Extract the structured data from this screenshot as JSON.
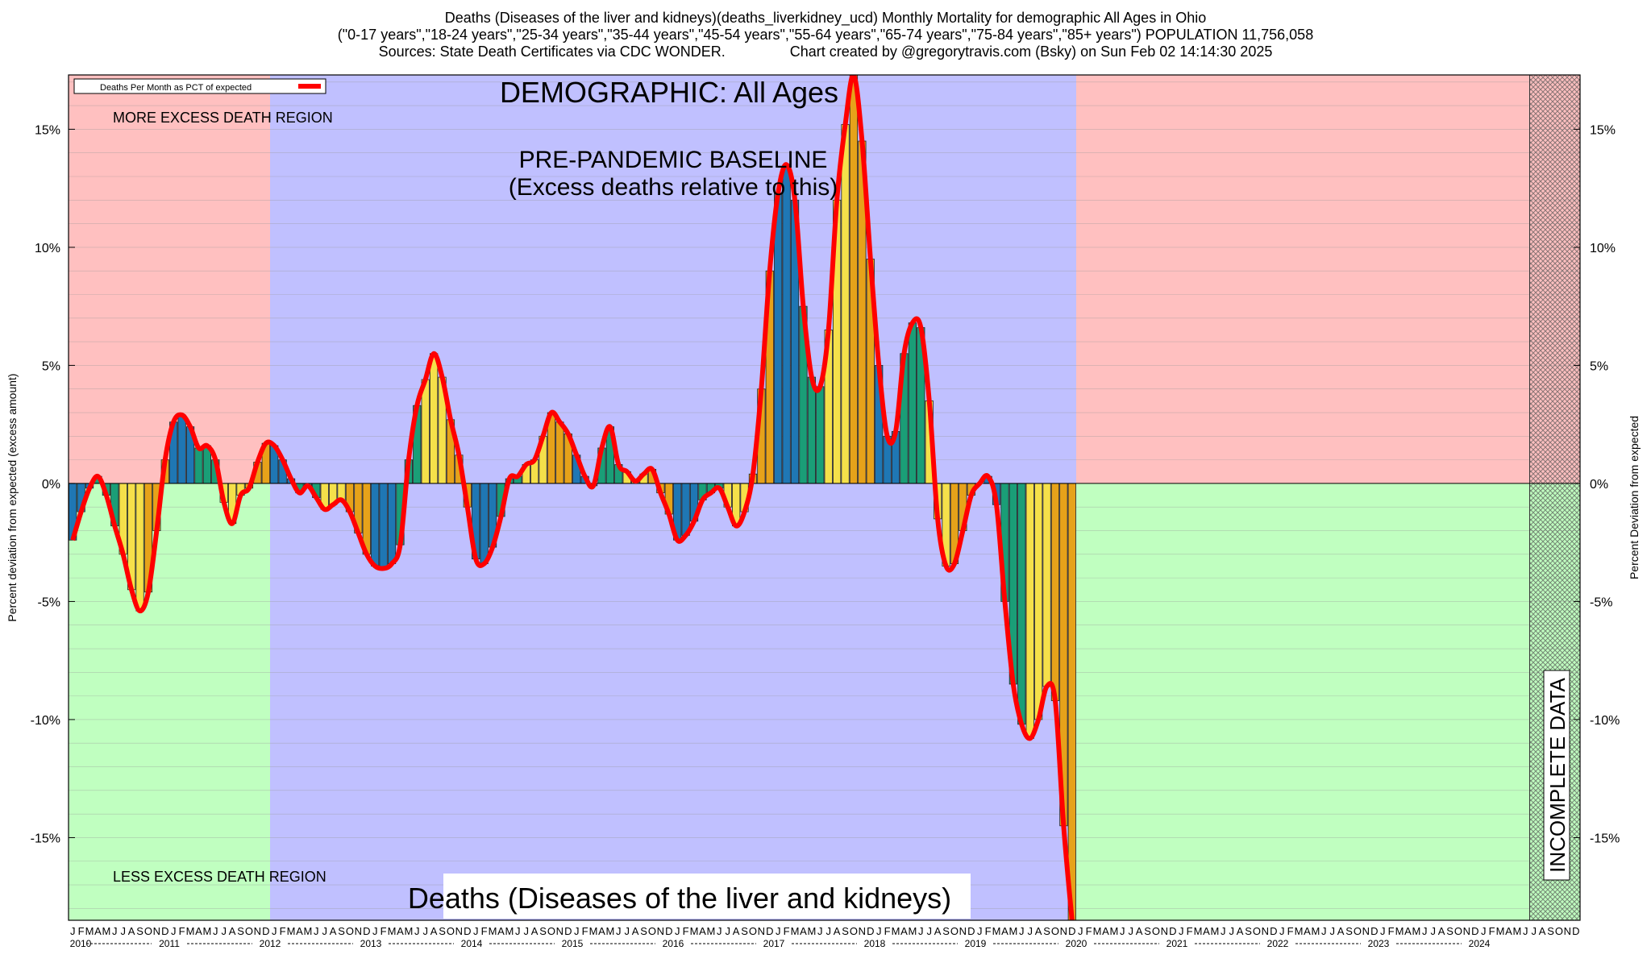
{
  "header": {
    "title_line1": "Deaths (Diseases of the liver and kidneys)(deaths_liverkidney_ucd) Monthly Mortality for demographic All Ages in Ohio",
    "title_line2": "(\"0-17 years\",\"18-24 years\",\"25-34 years\",\"35-44 years\",\"45-54 years\",\"55-64 years\",\"65-74 years\",\"75-84 years\",\"85+ years\") POPULATION 11,756,058",
    "title_line3": "Sources: State Death Certificates via CDC WONDER.                Chart created by @gregorytravis.com (Bsky) on Sun Feb 02 14:14:30 2025"
  },
  "colors": {
    "excess_region": "#ffc0c0",
    "less_region": "#c0ffc0",
    "baseline_region": "#c0c0ff",
    "line": "#ff0000",
    "bar_colors": [
      "#1f77b4",
      "#1a9e77",
      "#f5e04a",
      "#e6a21a"
    ]
  },
  "chart_data": {
    "type": "bar",
    "series_name": "Deaths Per Month as PCT of expected",
    "ylim": [
      -18.5,
      17.3
    ],
    "y_ticks": [
      -15,
      -10,
      -5,
      0,
      5,
      10,
      15
    ],
    "y_tick_labels": [
      "-15%",
      "-10%",
      "-5%",
      "0%",
      "5%",
      "10%",
      "15%"
    ],
    "ylabel_left": "Percent deviation from expected (excess amount)",
    "ylabel_right": "Percent Deviation from expected",
    "month_letters": [
      "J",
      "F",
      "M",
      "A",
      "M",
      "J",
      "J",
      "A",
      "S",
      "O",
      "N",
      "D"
    ],
    "years": [
      "2010",
      "2011",
      "2012",
      "2013",
      "2014",
      "2015",
      "2016",
      "2017",
      "2018",
      "2019",
      "2020",
      "2021",
      "2022",
      "2023",
      "2024"
    ],
    "start": "2010-01",
    "values": [
      -2.4,
      -1.2,
      -0.2,
      0.3,
      -0.5,
      -1.8,
      -3.0,
      -4.5,
      -5.4,
      -4.6,
      -2.0,
      1.0,
      2.6,
      2.9,
      2.4,
      1.5,
      1.6,
      1.0,
      -0.8,
      -1.7,
      -0.5,
      -0.2,
      0.9,
      1.7,
      1.6,
      1.0,
      0.2,
      -0.4,
      -0.1,
      -0.6,
      -1.1,
      -0.9,
      -0.7,
      -1.2,
      -2.1,
      -3.0,
      -3.5,
      -3.6,
      -3.4,
      -2.6,
      1.0,
      3.3,
      4.4,
      5.5,
      4.5,
      2.7,
      1.2,
      -1.0,
      -3.2,
      -3.4,
      -2.7,
      -1.4,
      0.2,
      0.3,
      0.8,
      1.0,
      2.0,
      3.0,
      2.6,
      2.1,
      1.2,
      0.3,
      -0.1,
      1.5,
      2.4,
      0.8,
      0.5,
      0.1,
      0.4,
      0.6,
      -0.4,
      -1.3,
      -2.4,
      -2.2,
      -1.6,
      -0.7,
      -0.4,
      -0.2,
      -1.0,
      -1.8,
      -1.2,
      0.4,
      4.0,
      9.0,
      12.3,
      13.5,
      12.0,
      7.5,
      4.5,
      4.1,
      6.5,
      12.0,
      15.2,
      17.3,
      14.5,
      9.5,
      5.0,
      2.0,
      2.2,
      5.5,
      6.8,
      6.6,
      3.5,
      -1.5,
      -3.5,
      -3.4,
      -2.0,
      -0.5,
      0.0,
      0.3,
      -0.9,
      -5.0,
      -8.5,
      -10.2,
      -10.8,
      -10.0,
      -8.6,
      -9.2,
      -14.5,
      -18.5
    ],
    "labels": {
      "more_excess": "MORE EXCESS DEATH REGION",
      "less_excess": "LESS EXCESS DEATH REGION",
      "demographic": "DEMOGRAPHIC: All Ages",
      "baseline_line1": "PRE-PANDEMIC BASELINE",
      "baseline_line2": "(Excess deaths relative to this)",
      "cause": "Deaths (Diseases of the liver and kidneys)",
      "incomplete": "INCOMPLETE DATA"
    },
    "legend_placement": "top-left",
    "grid": true
  }
}
